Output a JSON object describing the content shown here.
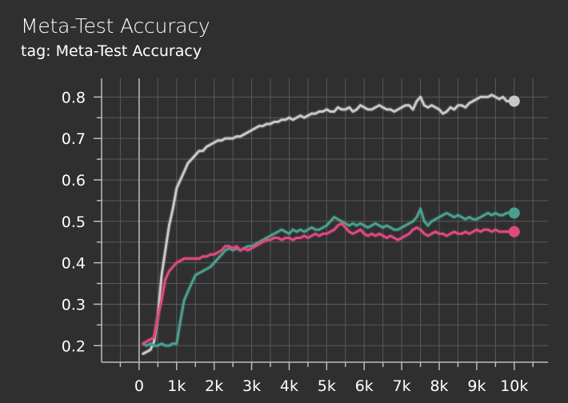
{
  "card": {
    "title": "Meta-Test Accuracy",
    "tag": "tag: Meta-Test Accuracy"
  },
  "colors": {
    "background": "#2f2f2f",
    "grid": "#5a5a5a",
    "axis": "#bdbdbd",
    "zero_line": "#9e9e9e"
  },
  "chart_data": {
    "type": "line",
    "title": "Meta-Test Accuracy",
    "xlabel": "",
    "ylabel": "",
    "xlim": [
      -1000,
      10900
    ],
    "ylim": [
      0.16,
      0.845
    ],
    "x_ticks": [
      0,
      1000,
      2000,
      3000,
      4000,
      5000,
      6000,
      7000,
      8000,
      9000,
      10000
    ],
    "x_tick_labels": [
      "0",
      "1k",
      "2k",
      "3k",
      "4k",
      "5k",
      "6k",
      "7k",
      "8k",
      "9k",
      "10k"
    ],
    "y_ticks": [
      0.2,
      0.3,
      0.4,
      0.5,
      0.6,
      0.7,
      0.8
    ],
    "y_tick_labels": [
      "0.2",
      "0.3",
      "0.4",
      "0.5",
      "0.6",
      "0.7",
      "0.8"
    ],
    "grid": true,
    "legend": "none",
    "series": [
      {
        "color": "#c8c8c8",
        "points": [
          [
            100,
            0.18
          ],
          [
            200,
            0.185
          ],
          [
            300,
            0.19
          ],
          [
            400,
            0.21
          ],
          [
            500,
            0.27
          ],
          [
            600,
            0.37
          ],
          [
            700,
            0.43
          ],
          [
            800,
            0.49
          ],
          [
            900,
            0.53
          ],
          [
            1000,
            0.58
          ],
          [
            1100,
            0.6
          ],
          [
            1200,
            0.62
          ],
          [
            1300,
            0.64
          ],
          [
            1400,
            0.65
          ],
          [
            1500,
            0.66
          ],
          [
            1600,
            0.67
          ],
          [
            1700,
            0.67
          ],
          [
            1800,
            0.68
          ],
          [
            1900,
            0.685
          ],
          [
            2000,
            0.69
          ],
          [
            2100,
            0.695
          ],
          [
            2200,
            0.695
          ],
          [
            2300,
            0.7
          ],
          [
            2400,
            0.7
          ],
          [
            2500,
            0.7
          ],
          [
            2600,
            0.705
          ],
          [
            2700,
            0.705
          ],
          [
            2800,
            0.71
          ],
          [
            2900,
            0.715
          ],
          [
            3000,
            0.72
          ],
          [
            3100,
            0.725
          ],
          [
            3200,
            0.73
          ],
          [
            3300,
            0.73
          ],
          [
            3400,
            0.735
          ],
          [
            3500,
            0.735
          ],
          [
            3600,
            0.74
          ],
          [
            3700,
            0.74
          ],
          [
            3800,
            0.745
          ],
          [
            3900,
            0.745
          ],
          [
            4000,
            0.75
          ],
          [
            4100,
            0.745
          ],
          [
            4200,
            0.75
          ],
          [
            4300,
            0.755
          ],
          [
            4400,
            0.75
          ],
          [
            4500,
            0.755
          ],
          [
            4600,
            0.76
          ],
          [
            4700,
            0.76
          ],
          [
            4800,
            0.765
          ],
          [
            4900,
            0.765
          ],
          [
            5000,
            0.77
          ],
          [
            5100,
            0.765
          ],
          [
            5200,
            0.765
          ],
          [
            5300,
            0.775
          ],
          [
            5400,
            0.77
          ],
          [
            5500,
            0.77
          ],
          [
            5600,
            0.775
          ],
          [
            5700,
            0.765
          ],
          [
            5800,
            0.77
          ],
          [
            5900,
            0.78
          ],
          [
            6000,
            0.775
          ],
          [
            6100,
            0.77
          ],
          [
            6200,
            0.77
          ],
          [
            6300,
            0.775
          ],
          [
            6400,
            0.78
          ],
          [
            6500,
            0.775
          ],
          [
            6600,
            0.77
          ],
          [
            6700,
            0.77
          ],
          [
            6800,
            0.765
          ],
          [
            6900,
            0.77
          ],
          [
            7000,
            0.775
          ],
          [
            7100,
            0.78
          ],
          [
            7200,
            0.78
          ],
          [
            7300,
            0.77
          ],
          [
            7400,
            0.79
          ],
          [
            7500,
            0.8
          ],
          [
            7600,
            0.78
          ],
          [
            7700,
            0.775
          ],
          [
            7800,
            0.78
          ],
          [
            7900,
            0.775
          ],
          [
            8000,
            0.77
          ],
          [
            8100,
            0.76
          ],
          [
            8200,
            0.765
          ],
          [
            8300,
            0.775
          ],
          [
            8400,
            0.77
          ],
          [
            8500,
            0.78
          ],
          [
            8600,
            0.78
          ],
          [
            8700,
            0.775
          ],
          [
            8800,
            0.785
          ],
          [
            8900,
            0.79
          ],
          [
            9000,
            0.795
          ],
          [
            9100,
            0.8
          ],
          [
            9200,
            0.8
          ],
          [
            9300,
            0.8
          ],
          [
            9400,
            0.805
          ],
          [
            9500,
            0.8
          ],
          [
            9600,
            0.795
          ],
          [
            9700,
            0.8
          ],
          [
            9800,
            0.79
          ],
          [
            9900,
            0.79
          ],
          [
            10000,
            0.79
          ]
        ]
      },
      {
        "color": "#4a9f8f",
        "points": [
          [
            100,
            0.205
          ],
          [
            200,
            0.2
          ],
          [
            300,
            0.205
          ],
          [
            400,
            0.2
          ],
          [
            500,
            0.2
          ],
          [
            600,
            0.205
          ],
          [
            700,
            0.2
          ],
          [
            800,
            0.2
          ],
          [
            900,
            0.205
          ],
          [
            1000,
            0.205
          ],
          [
            1100,
            0.26
          ],
          [
            1200,
            0.31
          ],
          [
            1300,
            0.33
          ],
          [
            1400,
            0.35
          ],
          [
            1500,
            0.37
          ],
          [
            1600,
            0.375
          ],
          [
            1700,
            0.38
          ],
          [
            1800,
            0.385
          ],
          [
            1900,
            0.39
          ],
          [
            2000,
            0.4
          ],
          [
            2100,
            0.41
          ],
          [
            2200,
            0.42
          ],
          [
            2300,
            0.43
          ],
          [
            2400,
            0.435
          ],
          [
            2500,
            0.43
          ],
          [
            2600,
            0.435
          ],
          [
            2700,
            0.43
          ],
          [
            2800,
            0.435
          ],
          [
            2900,
            0.44
          ],
          [
            3000,
            0.44
          ],
          [
            3100,
            0.445
          ],
          [
            3200,
            0.45
          ],
          [
            3300,
            0.455
          ],
          [
            3400,
            0.46
          ],
          [
            3500,
            0.465
          ],
          [
            3600,
            0.47
          ],
          [
            3700,
            0.475
          ],
          [
            3800,
            0.48
          ],
          [
            3900,
            0.475
          ],
          [
            4000,
            0.47
          ],
          [
            4100,
            0.48
          ],
          [
            4200,
            0.475
          ],
          [
            4300,
            0.48
          ],
          [
            4400,
            0.475
          ],
          [
            4500,
            0.48
          ],
          [
            4600,
            0.485
          ],
          [
            4700,
            0.48
          ],
          [
            4800,
            0.48
          ],
          [
            4900,
            0.485
          ],
          [
            5000,
            0.49
          ],
          [
            5100,
            0.5
          ],
          [
            5200,
            0.51
          ],
          [
            5300,
            0.505
          ],
          [
            5400,
            0.5
          ],
          [
            5500,
            0.495
          ],
          [
            5600,
            0.49
          ],
          [
            5700,
            0.495
          ],
          [
            5800,
            0.49
          ],
          [
            5900,
            0.495
          ],
          [
            6000,
            0.49
          ],
          [
            6100,
            0.485
          ],
          [
            6200,
            0.49
          ],
          [
            6300,
            0.495
          ],
          [
            6400,
            0.49
          ],
          [
            6500,
            0.485
          ],
          [
            6600,
            0.49
          ],
          [
            6700,
            0.485
          ],
          [
            6800,
            0.48
          ],
          [
            6900,
            0.48
          ],
          [
            7000,
            0.485
          ],
          [
            7100,
            0.49
          ],
          [
            7200,
            0.495
          ],
          [
            7300,
            0.5
          ],
          [
            7400,
            0.51
          ],
          [
            7500,
            0.53
          ],
          [
            7600,
            0.5
          ],
          [
            7700,
            0.49
          ],
          [
            7800,
            0.5
          ],
          [
            7900,
            0.505
          ],
          [
            8000,
            0.51
          ],
          [
            8100,
            0.515
          ],
          [
            8200,
            0.52
          ],
          [
            8300,
            0.515
          ],
          [
            8400,
            0.51
          ],
          [
            8500,
            0.515
          ],
          [
            8600,
            0.51
          ],
          [
            8700,
            0.505
          ],
          [
            8800,
            0.51
          ],
          [
            8900,
            0.505
          ],
          [
            9000,
            0.505
          ],
          [
            9100,
            0.51
          ],
          [
            9200,
            0.515
          ],
          [
            9300,
            0.52
          ],
          [
            9400,
            0.515
          ],
          [
            9500,
            0.52
          ],
          [
            9600,
            0.515
          ],
          [
            9700,
            0.515
          ],
          [
            9800,
            0.52
          ],
          [
            9900,
            0.52
          ],
          [
            10000,
            0.52
          ]
        ]
      },
      {
        "color": "#e0497f",
        "points": [
          [
            100,
            0.205
          ],
          [
            200,
            0.21
          ],
          [
            300,
            0.215
          ],
          [
            400,
            0.22
          ],
          [
            500,
            0.27
          ],
          [
            600,
            0.31
          ],
          [
            700,
            0.36
          ],
          [
            800,
            0.38
          ],
          [
            900,
            0.39
          ],
          [
            1000,
            0.4
          ],
          [
            1100,
            0.405
          ],
          [
            1200,
            0.41
          ],
          [
            1300,
            0.41
          ],
          [
            1400,
            0.41
          ],
          [
            1500,
            0.41
          ],
          [
            1600,
            0.41
          ],
          [
            1700,
            0.415
          ],
          [
            1800,
            0.415
          ],
          [
            1900,
            0.42
          ],
          [
            2000,
            0.42
          ],
          [
            2100,
            0.425
          ],
          [
            2200,
            0.43
          ],
          [
            2300,
            0.44
          ],
          [
            2400,
            0.44
          ],
          [
            2500,
            0.435
          ],
          [
            2600,
            0.44
          ],
          [
            2700,
            0.43
          ],
          [
            2800,
            0.435
          ],
          [
            2900,
            0.43
          ],
          [
            3000,
            0.435
          ],
          [
            3100,
            0.44
          ],
          [
            3200,
            0.445
          ],
          [
            3300,
            0.45
          ],
          [
            3400,
            0.455
          ],
          [
            3500,
            0.455
          ],
          [
            3600,
            0.46
          ],
          [
            3700,
            0.46
          ],
          [
            3800,
            0.455
          ],
          [
            3900,
            0.46
          ],
          [
            4000,
            0.46
          ],
          [
            4100,
            0.455
          ],
          [
            4200,
            0.46
          ],
          [
            4300,
            0.46
          ],
          [
            4400,
            0.465
          ],
          [
            4500,
            0.46
          ],
          [
            4600,
            0.465
          ],
          [
            4700,
            0.47
          ],
          [
            4800,
            0.465
          ],
          [
            4900,
            0.47
          ],
          [
            5000,
            0.47
          ],
          [
            5100,
            0.475
          ],
          [
            5200,
            0.48
          ],
          [
            5300,
            0.49
          ],
          [
            5400,
            0.495
          ],
          [
            5500,
            0.485
          ],
          [
            5600,
            0.475
          ],
          [
            5700,
            0.47
          ],
          [
            5800,
            0.475
          ],
          [
            5900,
            0.48
          ],
          [
            6000,
            0.47
          ],
          [
            6100,
            0.465
          ],
          [
            6200,
            0.47
          ],
          [
            6300,
            0.465
          ],
          [
            6400,
            0.47
          ],
          [
            6500,
            0.465
          ],
          [
            6600,
            0.46
          ],
          [
            6700,
            0.465
          ],
          [
            6800,
            0.46
          ],
          [
            6900,
            0.455
          ],
          [
            7000,
            0.46
          ],
          [
            7100,
            0.465
          ],
          [
            7200,
            0.47
          ],
          [
            7300,
            0.48
          ],
          [
            7400,
            0.485
          ],
          [
            7500,
            0.48
          ],
          [
            7600,
            0.47
          ],
          [
            7700,
            0.465
          ],
          [
            7800,
            0.47
          ],
          [
            7900,
            0.475
          ],
          [
            8000,
            0.47
          ],
          [
            8100,
            0.47
          ],
          [
            8200,
            0.465
          ],
          [
            8300,
            0.47
          ],
          [
            8400,
            0.475
          ],
          [
            8500,
            0.47
          ],
          [
            8600,
            0.47
          ],
          [
            8700,
            0.475
          ],
          [
            8800,
            0.47
          ],
          [
            8900,
            0.475
          ],
          [
            9000,
            0.48
          ],
          [
            9100,
            0.475
          ],
          [
            9200,
            0.48
          ],
          [
            9300,
            0.48
          ],
          [
            9400,
            0.475
          ],
          [
            9500,
            0.48
          ],
          [
            9600,
            0.475
          ],
          [
            9700,
            0.475
          ],
          [
            9800,
            0.475
          ],
          [
            9900,
            0.475
          ],
          [
            10000,
            0.475
          ]
        ]
      }
    ]
  }
}
